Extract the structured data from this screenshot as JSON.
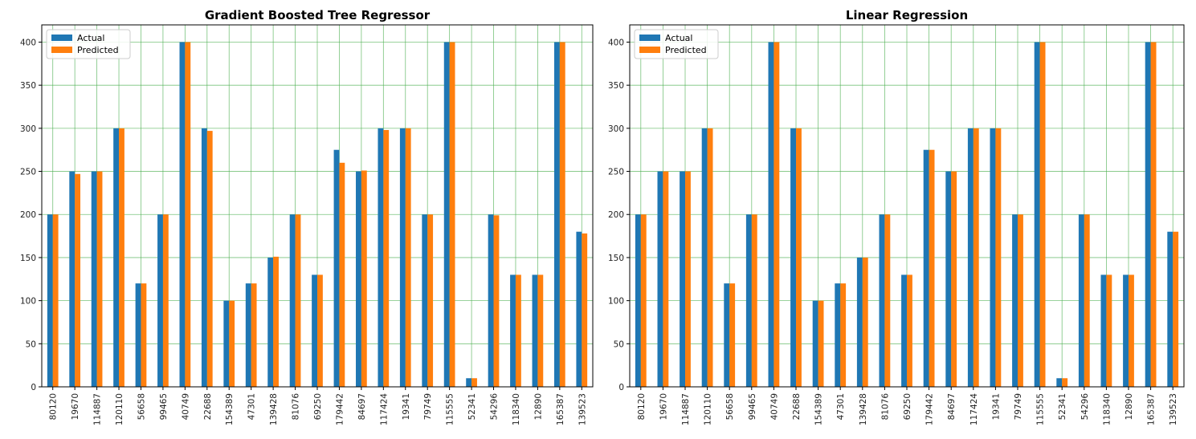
{
  "chart_data": [
    {
      "type": "bar",
      "title": "Gradient Boosted Tree Regressor",
      "xlabel": "",
      "ylabel": "",
      "ylim": [
        0,
        420
      ],
      "yticks": [
        0,
        50,
        100,
        150,
        200,
        250,
        300,
        350,
        400
      ],
      "grid": true,
      "legend_position": "top-left",
      "categories": [
        "80120",
        "19670",
        "114887",
        "120110",
        "56658",
        "99465",
        "40749",
        "22688",
        "154389",
        "47301",
        "139428",
        "81076",
        "69250",
        "179442",
        "84697",
        "117424",
        "19341",
        "79749",
        "115555",
        "52341",
        "54296",
        "118340",
        "12890",
        "165387",
        "139523"
      ],
      "series": [
        {
          "name": "Actual",
          "color": "#1f77b4",
          "values": [
            200,
            250,
            250,
            300,
            120,
            200,
            400,
            300,
            100,
            120,
            150,
            200,
            130,
            275,
            250,
            300,
            300,
            200,
            400,
            10,
            200,
            130,
            130,
            400,
            180
          ]
        },
        {
          "name": "Predicted",
          "color": "#ff7f0e",
          "values": [
            200,
            247,
            250,
            300,
            120,
            200,
            400,
            297,
            100,
            120,
            151,
            200,
            130,
            260,
            251,
            298,
            300,
            200,
            400,
            10,
            199,
            130,
            130,
            400,
            178
          ]
        }
      ]
    },
    {
      "type": "bar",
      "title": "Linear Regression",
      "xlabel": "",
      "ylabel": "",
      "ylim": [
        0,
        420
      ],
      "yticks": [
        0,
        50,
        100,
        150,
        200,
        250,
        300,
        350,
        400
      ],
      "grid": true,
      "legend_position": "top-left",
      "categories": [
        "80120",
        "19670",
        "114887",
        "120110",
        "56658",
        "99465",
        "40749",
        "22688",
        "154389",
        "47301",
        "139428",
        "81076",
        "69250",
        "179442",
        "84697",
        "117424",
        "19341",
        "79749",
        "115555",
        "52341",
        "54296",
        "118340",
        "12890",
        "165387",
        "139523"
      ],
      "series": [
        {
          "name": "Actual",
          "color": "#1f77b4",
          "values": [
            200,
            250,
            250,
            300,
            120,
            200,
            400,
            300,
            100,
            120,
            150,
            200,
            130,
            275,
            250,
            300,
            300,
            200,
            400,
            10,
            200,
            130,
            130,
            400,
            180
          ]
        },
        {
          "name": "Predicted",
          "color": "#ff7f0e",
          "values": [
            200,
            250,
            250,
            300,
            120,
            200,
            400,
            300,
            100,
            120,
            150,
            200,
            130,
            275,
            250,
            300,
            300,
            200,
            400,
            10,
            200,
            130,
            130,
            400,
            180
          ]
        }
      ]
    }
  ],
  "colors": {
    "grid": "#4caf50",
    "axes": "#000000"
  }
}
